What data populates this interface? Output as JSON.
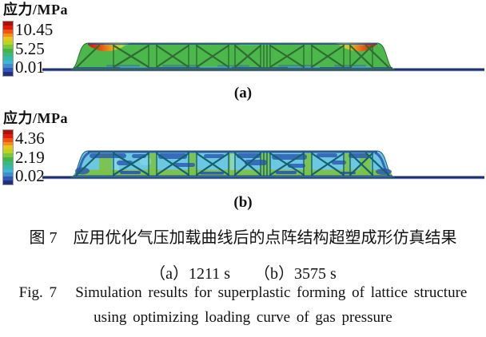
{
  "figure": {
    "panels": [
      {
        "label": "(a)",
        "legend_title": "应力/MPa",
        "scale_max": "10.45",
        "scale_mid": "5.25",
        "scale_min": "0.01"
      },
      {
        "label": "(b)",
        "legend_title": "应力/MPa",
        "scale_max": "4.36",
        "scale_mid": "2.19",
        "scale_min": "0.02"
      }
    ],
    "colorbar": {
      "colors": [
        "#ad0f0a",
        "#e01b0e",
        "#ef5411",
        "#f68c1c",
        "#ecc51c",
        "#b8d621",
        "#7cc837",
        "#44b649",
        "#3bb77f",
        "#36b9ac",
        "#41b2d8",
        "#3f8ecb",
        "#3158b8",
        "#232f7d"
      ]
    },
    "colors": {
      "panel_a_body": "#4cb84c",
      "panel_b_body": "#6cc7e2",
      "brace_a": "#2f6d33",
      "brace_b": "#14606e",
      "baseline": "#1e2f74",
      "band_green": "#7cc345",
      "patch_blue": "#2b55b0",
      "hot_red": "#c81407",
      "hot_orange": "#ee5a12",
      "hot_yellow": "#f7a81b"
    },
    "caption": {
      "zh": "图 7　应用优化气压加载曲线后的点阵结构超塑成形仿真结果",
      "sub": "（a）1211 s　　（b）3575 s",
      "en_line1": "Fig. 7   Simulation results for superplastic forming of lattice structure",
      "en_line2": "using optimizing loading curve of gas pressure"
    }
  }
}
